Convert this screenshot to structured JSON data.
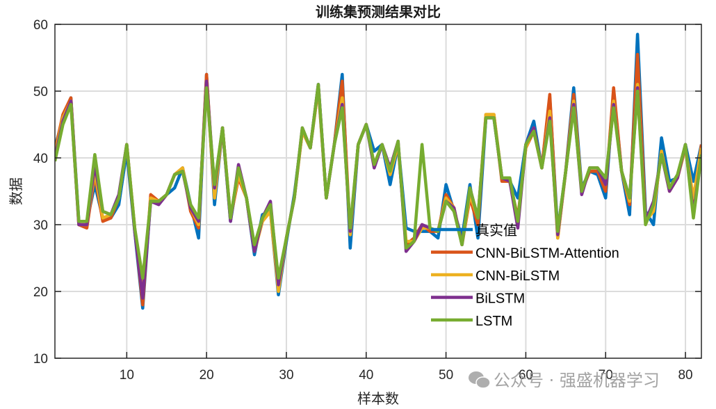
{
  "chart_data": {
    "type": "line",
    "title": "训练集预测结果对比",
    "xlabel": "样本数",
    "ylabel": "数据",
    "xlim": [
      1,
      82
    ],
    "ylim": [
      10,
      60
    ],
    "xticks": [
      10,
      20,
      30,
      40,
      50,
      60,
      70,
      80
    ],
    "yticks": [
      10,
      20,
      30,
      40,
      50,
      60
    ],
    "grid": true,
    "legend_position": "inside-lower-right",
    "series": [
      {
        "name": "真实值",
        "color": "#0072BD",
        "values": [
          41.5,
          46,
          49,
          30.5,
          30.5,
          36,
          31,
          31,
          33,
          41,
          29,
          17.5,
          34,
          33.5,
          34.5,
          35.5,
          38.5,
          33,
          28,
          52.5,
          33,
          44.5,
          30.5,
          38,
          34,
          25.5,
          31.5,
          32,
          19.5,
          27.5,
          34.5,
          44,
          41.5,
          51,
          34,
          42,
          52.5,
          26.5,
          42,
          45,
          41,
          42,
          36,
          42,
          29.5,
          29,
          29,
          29,
          28,
          36,
          32,
          28,
          36,
          28,
          46,
          46,
          37,
          36.5,
          34,
          42,
          45.5,
          38.5,
          49,
          29,
          38,
          50.5,
          35.5,
          38,
          37.5,
          34,
          50,
          38,
          31.5,
          58.5,
          32,
          30,
          43,
          36.5,
          37,
          42,
          36.5,
          42
        ]
      },
      {
        "name": "CNN-BiLSTM-Attention",
        "color": "#D95319",
        "values": [
          41,
          46.5,
          49,
          30,
          29.5,
          37.5,
          30.5,
          31,
          34,
          42,
          29.5,
          18,
          34.5,
          33.5,
          34.5,
          37.5,
          38.5,
          32,
          29.5,
          52.5,
          34,
          44.5,
          31,
          37,
          34,
          26,
          30.5,
          32,
          20.5,
          28,
          34,
          44,
          41.5,
          50.5,
          34,
          42,
          51.5,
          28.5,
          42,
          45,
          39,
          42,
          37.5,
          42,
          27,
          28,
          30,
          29,
          29,
          34.5,
          32.5,
          27,
          34,
          30,
          46.5,
          46.5,
          36.5,
          36.5,
          31,
          41.5,
          44,
          38.5,
          49.5,
          28,
          38,
          49.5,
          35,
          38,
          38,
          35,
          50.5,
          38,
          33,
          55.5,
          31,
          32,
          41,
          35.5,
          37,
          41.5,
          33,
          42
        ]
      },
      {
        "name": "CNN-BiLSTM",
        "color": "#EDB120",
        "values": [
          40.5,
          46,
          48.5,
          30,
          30,
          38,
          31,
          31.5,
          34,
          42,
          29.5,
          19.5,
          34,
          33.5,
          34.5,
          37.5,
          38.5,
          32.5,
          30,
          51.5,
          34,
          44.5,
          31,
          37.5,
          34,
          26,
          30.5,
          32,
          20,
          28,
          34,
          44,
          41.5,
          50.5,
          34,
          42,
          49,
          28.5,
          42,
          45,
          39,
          42,
          37.5,
          42,
          27.5,
          27.5,
          29.5,
          29.5,
          29,
          34,
          32.5,
          27,
          34.5,
          31,
          46.5,
          46.5,
          37,
          36.5,
          30.5,
          41.5,
          44.5,
          38.5,
          47,
          28,
          38,
          48.5,
          35,
          38.5,
          38.5,
          36,
          48.5,
          38,
          33.5,
          51,
          30.5,
          32,
          41,
          35,
          37,
          41.5,
          34,
          41.5
        ]
      },
      {
        "name": "BiLSTM",
        "color": "#7E2F8E",
        "values": [
          40,
          45.5,
          48.5,
          30,
          30,
          39,
          32,
          31.5,
          34.5,
          42,
          29,
          19,
          33.5,
          33,
          34.5,
          37.5,
          38,
          32.5,
          30.5,
          51.5,
          35.5,
          44.5,
          30.5,
          39,
          34,
          26,
          31,
          33.5,
          21,
          28,
          34,
          44.5,
          41.5,
          51,
          34,
          42,
          48,
          29,
          42,
          45,
          38.5,
          42,
          38.5,
          42.5,
          26,
          27.5,
          30,
          29.5,
          29,
          33.5,
          32.5,
          27,
          35.5,
          31,
          46,
          46,
          37,
          36.5,
          29.5,
          42,
          44.5,
          38.5,
          46,
          28.5,
          38,
          48,
          34.5,
          38.5,
          38.5,
          36,
          48,
          38,
          34,
          50.5,
          30.5,
          33.5,
          40.5,
          35,
          37,
          42,
          31.5,
          40.5
        ]
      },
      {
        "name": "LSTM",
        "color": "#77AC30",
        "values": [
          39.5,
          45,
          48,
          30.5,
          30.5,
          40.5,
          32,
          31.5,
          34,
          42,
          29.5,
          22,
          33.5,
          33.5,
          34.5,
          37.5,
          38,
          33,
          31,
          50.5,
          36,
          44.5,
          31,
          38.5,
          34,
          27,
          31,
          33,
          22,
          28,
          34,
          44.5,
          41.5,
          51,
          34,
          42,
          47.5,
          29.5,
          42,
          45,
          39,
          42,
          38,
          42.5,
          26.5,
          27.5,
          42,
          29.5,
          29,
          33.5,
          32,
          27,
          35.5,
          31,
          46,
          46,
          37,
          37,
          30.5,
          42,
          44,
          38.5,
          45.5,
          29,
          38,
          47.5,
          35,
          38.5,
          38.5,
          37,
          47.5,
          38,
          34,
          50,
          30,
          33,
          40.5,
          35.5,
          37.5,
          42,
          31,
          40.5
        ]
      }
    ]
  },
  "watermark": {
    "icon": "wechat-icon",
    "text": "公众号 · 强盛机器学习"
  }
}
